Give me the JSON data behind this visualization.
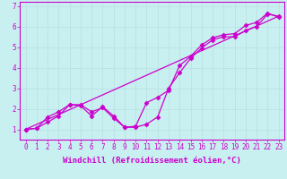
{
  "xlabel": "Windchill (Refroidissement éolien,°C)",
  "bg_color": "#c8f0f0",
  "line_color": "#cc00cc",
  "grid_color": "#b8e0e0",
  "axis_color": "#cc00cc",
  "spine_color": "#cc00cc",
  "xlim": [
    -0.5,
    23.5
  ],
  "ylim": [
    0.5,
    7.2
  ],
  "xticks": [
    0,
    1,
    2,
    3,
    4,
    5,
    6,
    7,
    8,
    9,
    10,
    11,
    12,
    13,
    14,
    15,
    16,
    17,
    18,
    19,
    20,
    21,
    22,
    23
  ],
  "yticks": [
    1,
    2,
    3,
    4,
    5,
    6,
    7
  ],
  "line1_x": [
    0,
    1,
    2,
    3,
    4,
    5,
    6,
    7,
    8,
    9,
    10,
    11,
    12,
    13,
    14,
    15,
    16,
    17,
    18,
    19,
    20,
    21,
    22,
    23
  ],
  "line1_y": [
    1.0,
    1.05,
    1.35,
    1.65,
    2.2,
    2.15,
    1.65,
    2.1,
    1.65,
    1.1,
    1.1,
    1.25,
    1.6,
    3.0,
    3.75,
    4.45,
    4.95,
    5.35,
    5.5,
    5.5,
    5.8,
    6.0,
    6.6,
    6.5
  ],
  "line2_x": [
    0,
    1,
    2,
    3,
    4,
    5,
    6,
    7,
    8,
    9,
    10,
    11,
    12,
    13,
    14,
    15,
    16,
    17,
    18,
    19,
    20,
    21,
    22,
    23
  ],
  "line2_y": [
    1.0,
    1.05,
    1.6,
    1.85,
    2.2,
    2.2,
    1.85,
    2.05,
    1.55,
    1.1,
    1.15,
    2.3,
    2.55,
    2.9,
    4.1,
    4.55,
    5.1,
    5.45,
    5.6,
    5.65,
    6.05,
    6.2,
    6.65,
    6.45
  ],
  "line3_x": [
    0,
    23
  ],
  "line3_y": [
    1.0,
    6.5
  ],
  "marker": "D",
  "marker_size": 2.5,
  "linewidth": 0.9,
  "label_fontsize": 6.5,
  "tick_fontsize": 5.5
}
